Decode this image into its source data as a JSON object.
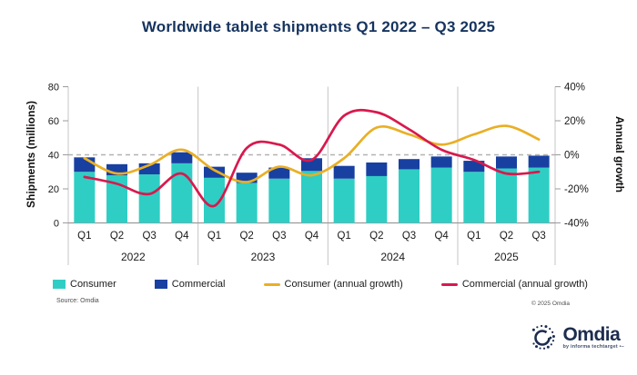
{
  "title": "Worldwide tablet shipments Q1 2022 – Q3 2025",
  "colors": {
    "consumer": "#2FCEC4",
    "commercial": "#1840A1",
    "consumer_growth": "#E9AF25",
    "commercial_growth": "#D8194D",
    "title_navy": "#15335E",
    "logo_navy": "#1D2D4F",
    "axis_line": "#c4c4c4",
    "axis_dark": "#9b9b9b",
    "dashed_line": "#b3b3b3",
    "tick_text": "#1a1a1a"
  },
  "chart_data": {
    "type": "bar",
    "subtype": "stacked-bars-with-line-overlay",
    "categories": [
      "Q1",
      "Q2",
      "Q3",
      "Q4",
      "Q1",
      "Q2",
      "Q3",
      "Q4",
      "Q1",
      "Q2",
      "Q3",
      "Q4",
      "Q1",
      "Q2",
      "Q3"
    ],
    "year_groups": [
      {
        "label": "2022",
        "count": 4
      },
      {
        "label": "2023",
        "count": 4
      },
      {
        "label": "2024",
        "count": 4
      },
      {
        "label": "2025",
        "count": 3
      }
    ],
    "series": [
      {
        "name": "Consumer",
        "kind": "bar",
        "values": [
          30,
          28,
          28.5,
          35,
          26.5,
          23.5,
          26,
          30.5,
          26,
          27.5,
          31.5,
          32.5,
          30,
          32,
          32.5
        ]
      },
      {
        "name": "Commercial",
        "kind": "bar",
        "values": [
          8.5,
          6.5,
          6.5,
          6.5,
          6.5,
          6,
          6.5,
          7.5,
          7.5,
          8,
          6,
          6.5,
          6.5,
          7,
          7
        ]
      },
      {
        "name": "Consumer (annual growth)",
        "kind": "line",
        "values": [
          -2,
          -11,
          -6,
          3,
          -9,
          -16,
          -7,
          -12,
          -2,
          16,
          12,
          6,
          12,
          17,
          9
        ]
      },
      {
        "name": "Commercial (annual growth)",
        "kind": "line",
        "values": [
          -13,
          -17,
          -23,
          -11,
          -30,
          4,
          6,
          -3,
          23,
          25,
          15,
          3,
          -3,
          -11,
          -10
        ]
      }
    ],
    "left_axis": {
      "label": "Shipments (millions)",
      "ticks": [
        0,
        20,
        40,
        60,
        80
      ],
      "range": [
        0,
        80
      ]
    },
    "right_axis": {
      "label": "Annual growth",
      "ticks": [
        "40%",
        "20%",
        "0%",
        "-20%",
        "-40%"
      ],
      "tick_values": [
        40,
        20,
        0,
        -20,
        -40
      ],
      "range": [
        -40,
        40
      ]
    },
    "gridline_at_percent": 0,
    "grid": "single dashed zero line",
    "legend_position": "bottom"
  },
  "legend": {
    "items": [
      {
        "label": "Consumer",
        "swatch": "rect",
        "color": "#2FCEC4"
      },
      {
        "label": "Commercial",
        "swatch": "rect",
        "color": "#1840A1"
      },
      {
        "label": "Consumer (annual growth)",
        "swatch": "line",
        "color": "#E9AF25"
      },
      {
        "label": "Commercial (annual growth)",
        "swatch": "line",
        "color": "#D8194D"
      }
    ]
  },
  "footer": {
    "source": "Source: Omdia",
    "copyright": "© 2025 Omdia"
  },
  "logo": {
    "word": "Omdia",
    "tagline": "by informa techtarget •–"
  }
}
